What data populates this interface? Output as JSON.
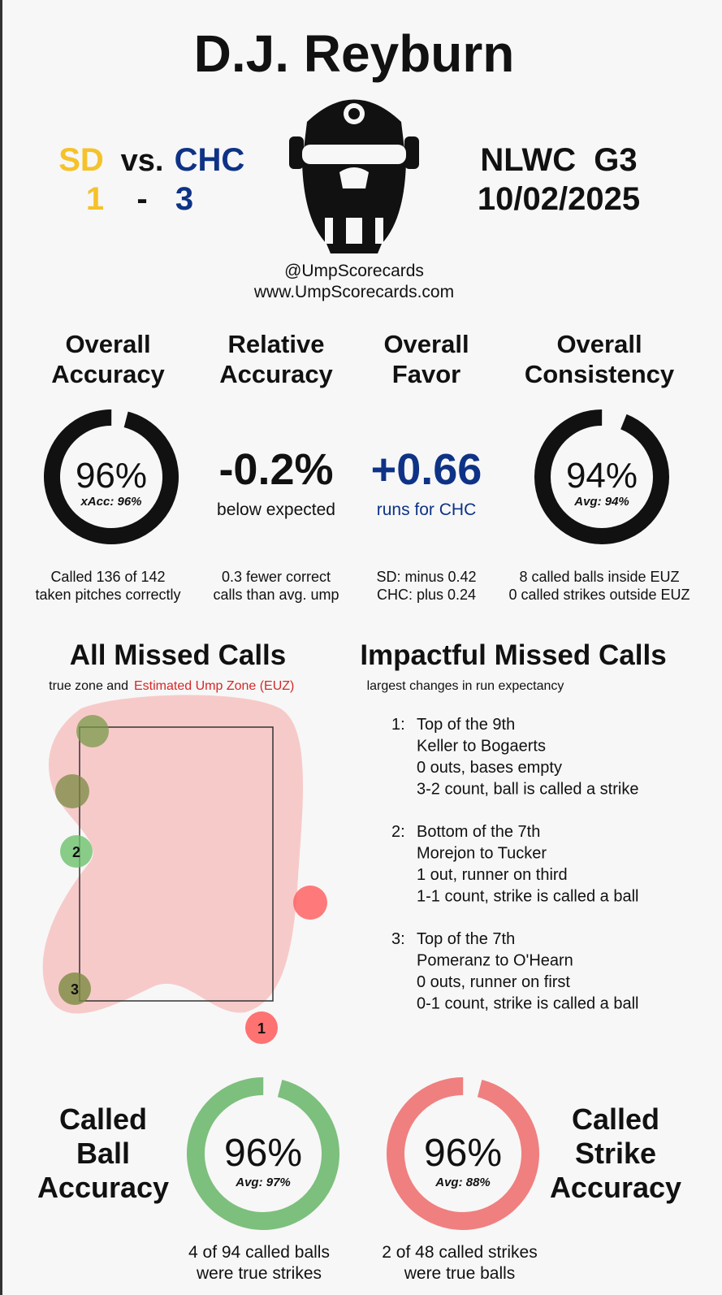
{
  "header": {
    "title": "D.J. Reyburn",
    "away": "SD",
    "vs": "vs.",
    "home": "CHC",
    "away_score": "1",
    "dash": "-",
    "home_score": "3",
    "game": "NLWC  G3",
    "date": "10/02/2025",
    "handle": "@UmpScorecards",
    "website": "www.UmpScorecards.com"
  },
  "metrics": [
    {
      "title": [
        "Overall",
        "Accuracy"
      ],
      "ring": {
        "value": 96,
        "label": "96%"
      },
      "sub": "xAcc: 96%",
      "notes": [
        "Called 136 of 142",
        "taken pitches correctly"
      ]
    },
    {
      "title": [
        "Relative",
        "Accuracy"
      ],
      "big": "-0.2%",
      "sub": "below expected",
      "notes": [
        "0.3 fewer correct",
        "calls than avg. ump"
      ]
    },
    {
      "title": [
        "Overall",
        "Favor"
      ],
      "big": "+0.66",
      "sub": "runs for CHC",
      "notes": [
        "SD: minus 0.42",
        "CHC: plus 0.24"
      ]
    },
    {
      "title": [
        "Overall",
        "Consistency"
      ],
      "ring": {
        "value": 94,
        "label": "94%"
      },
      "sub": "Avg: 94%",
      "notes": [
        "8 called balls inside EUZ",
        "0 called strikes outside EUZ"
      ]
    }
  ],
  "missed": {
    "title": "All Missed Calls",
    "subtitle": "true zone and",
    "euz": "Estimated Ump Zone (EUZ)",
    "labels": [
      "1",
      "2",
      "3"
    ]
  },
  "impactful": {
    "title": "Impactful Missed Calls",
    "subtitle": "largest changes in run expectancy",
    "calls": [
      {
        "rank": "1:",
        "lines": [
          "Top of the 9th",
          "Keller to Bogaerts",
          "0 outs, bases empty",
          "3-2 count, ball is called a strike"
        ]
      },
      {
        "rank": "2:",
        "lines": [
          "Bottom of the 7th",
          "Morejon to Tucker",
          "1 out, runner on third",
          "1-1 count, strike is called a ball"
        ]
      },
      {
        "rank": "3:",
        "lines": [
          "Top of the 7th",
          "Pomeranz to O'Hearn",
          "0 outs, runner on first",
          "0-1 count, strike is called a ball"
        ]
      }
    ]
  },
  "called": [
    {
      "title": [
        "Called",
        "Ball",
        "Accuracy"
      ],
      "ring": {
        "value": 96,
        "label": "96%"
      },
      "sub": "Avg: 97%",
      "notes": [
        "4 of 94 called balls",
        "were true strikes"
      ],
      "color": "#7dbf7d"
    },
    {
      "title": [
        "Called",
        "Strike",
        "Accuracy"
      ],
      "ring": {
        "value": 96,
        "label": "96%"
      },
      "sub": "Avg: 88%",
      "notes": [
        "2 of 48 called strikes",
        "were true balls"
      ],
      "color": "#f07f7f"
    }
  ]
}
